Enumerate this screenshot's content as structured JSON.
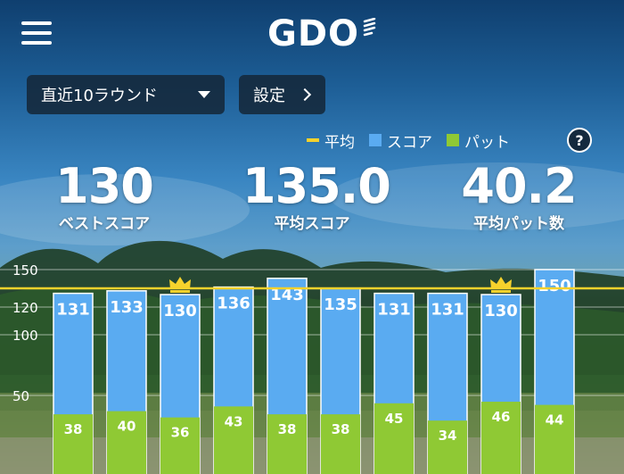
{
  "header": {
    "menu_icon": "hamburger-menu-icon",
    "logo": "GDO"
  },
  "controls": {
    "period_select": "直近10ラウンド",
    "settings_label": "設定"
  },
  "legend": {
    "items": [
      {
        "label": "平均",
        "color": "#f6d22c"
      },
      {
        "label": "スコア",
        "color": "#5aabf1"
      },
      {
        "label": "パット",
        "color": "#8fc934"
      }
    ],
    "help_label": "?"
  },
  "stats": {
    "best_score": {
      "value": "130",
      "label": "ベストスコア"
    },
    "average_score": {
      "value": "135.0",
      "label": "平均スコア"
    },
    "average_putts": {
      "value": "40.2",
      "label": "平均パット数"
    }
  },
  "chart_data": {
    "type": "bar",
    "y_ticks": [
      50,
      100,
      120,
      150
    ],
    "ylim": [
      0,
      150
    ],
    "average_line": 135.0,
    "score_color": "#5aabf1",
    "putt_color": "#8fc934",
    "average_color": "#f6d22c",
    "rounds": [
      {
        "score": 131,
        "putts": 38,
        "best": false
      },
      {
        "score": 133,
        "putts": 40,
        "best": false
      },
      {
        "score": 130,
        "putts": 36,
        "best": true
      },
      {
        "score": 136,
        "putts": 43,
        "best": false
      },
      {
        "score": 143,
        "putts": 38,
        "best": false
      },
      {
        "score": 135,
        "putts": 38,
        "best": false
      },
      {
        "score": 131,
        "putts": 45,
        "best": false
      },
      {
        "score": 131,
        "putts": 34,
        "best": false
      },
      {
        "score": 130,
        "putts": 46,
        "best": true
      },
      {
        "score": 150,
        "putts": 44,
        "best": false
      }
    ]
  }
}
